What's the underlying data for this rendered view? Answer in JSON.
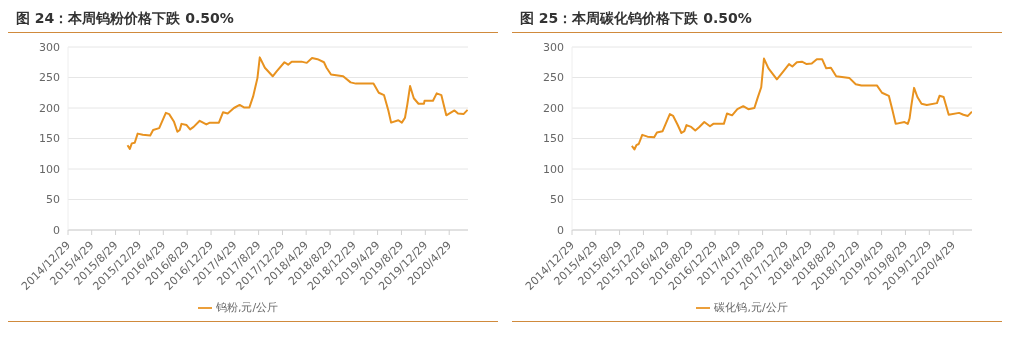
{
  "chart_data": [
    {
      "type": "line",
      "title": "图 24：本周钨粉价格下跌 0.50%",
      "legend": "bottom",
      "grid": "y",
      "marker": "none",
      "line_style": "solid",
      "x": [
        "2015-10-29",
        "2015-11-10",
        "2015-11-20",
        "2015-12-05",
        "2015-12-20",
        "2016-01-15",
        "2016-02-22",
        "2016-03-08",
        "2016-04-08",
        "2016-05-12",
        "2016-05-29",
        "2016-06-22",
        "2016-07-10",
        "2016-07-22",
        "2016-07-31",
        "2016-08-26",
        "2016-09-13",
        "2016-10-01",
        "2016-11-01",
        "2016-12-05",
        "2016-12-23",
        "2017-02-07",
        "2017-02-28",
        "2017-03-24",
        "2017-04-25",
        "2017-05-24",
        "2017-06-15",
        "2017-07-13",
        "2017-08-01",
        "2017-08-23",
        "2017-09-04",
        "2017-09-30",
        "2017-11-09",
        "2017-11-29",
        "2018-01-08",
        "2018-01-27",
        "2018-02-14",
        "2018-04-05",
        "2018-05-02",
        "2018-05-29",
        "2018-06-26",
        "2018-07-29",
        "2018-08-11",
        "2018-09-03",
        "2018-11-04",
        "2018-12-12",
        "2019-01-08",
        "2019-04-08",
        "2019-05-05",
        "2019-06-01",
        "2019-06-23",
        "2019-07-07",
        "2019-08-13",
        "2019-08-31",
        "2019-09-16",
        "2019-09-28",
        "2019-10-12",
        "2019-10-31",
        "2019-11-24",
        "2019-12-22",
        "2019-12-25",
        "2020-02-06",
        "2020-02-25",
        "2020-03-20",
        "2020-04-14",
        "2020-05-26",
        "2020-06-13",
        "2020-07-11",
        "2020-08-01"
      ],
      "series": [
        {
          "name": "钨粉,元/公斤",
          "color": "#e8921f",
          "values": [
            139,
            133,
            142,
            143,
            158,
            156,
            155,
            164,
            167,
            192,
            190,
            178,
            161,
            164,
            174,
            172,
            165,
            169,
            179,
            173,
            176,
            176,
            193,
            191,
            200,
            205,
            201,
            201,
            219,
            249,
            283,
            266,
            252,
            260,
            275,
            271,
            276,
            276,
            274,
            282,
            280,
            275,
            266,
            255,
            252,
            242,
            240,
            240,
            225,
            221,
            196,
            176,
            180,
            176,
            184,
            206,
            236,
            216,
            207,
            207,
            212,
            212,
            224,
            221,
            188,
            196,
            191,
            190,
            197
          ]
        }
      ],
      "xlim": [
        "2014-12-29",
        "2020-08-03"
      ],
      "xticks": [
        {
          "value": "2014-12-29",
          "label": "2014/12/29"
        },
        {
          "value": "2015-04-29",
          "label": "2015/4/29"
        },
        {
          "value": "2015-08-29",
          "label": "2015/8/29"
        },
        {
          "value": "2015-12-29",
          "label": "2015/12/29"
        },
        {
          "value": "2016-04-29",
          "label": "2016/4/29"
        },
        {
          "value": "2016-08-29",
          "label": "2016/8/29"
        },
        {
          "value": "2016-12-29",
          "label": "2016/12/29"
        },
        {
          "value": "2017-04-29",
          "label": "2017/4/29"
        },
        {
          "value": "2017-08-29",
          "label": "2017/8/29"
        },
        {
          "value": "2017-12-29",
          "label": "2017/12/29"
        },
        {
          "value": "2018-04-29",
          "label": "2018/4/29"
        },
        {
          "value": "2018-08-29",
          "label": "2018/8/29"
        },
        {
          "value": "2018-12-29",
          "label": "2018/12/29"
        },
        {
          "value": "2019-04-29",
          "label": "2019/4/29"
        },
        {
          "value": "2019-08-29",
          "label": "2019/8/29"
        },
        {
          "value": "2019-12-29",
          "label": "2019/12/29"
        },
        {
          "value": "2020-04-29",
          "label": "2020/4/29"
        }
      ],
      "ylim": [
        0,
        300
      ],
      "yticks": [
        0,
        50,
        100,
        150,
        200,
        250,
        300
      ]
    },
    {
      "type": "line",
      "title": "图 25：本周碳化钨价格下跌 0.50%",
      "legend": "bottom",
      "grid": "y",
      "marker": "none",
      "line_style": "solid",
      "x": [
        "2015-10-31",
        "2015-11-13",
        "2015-11-23",
        "2015-12-05",
        "2015-12-23",
        "2016-01-19",
        "2016-02-22",
        "2016-03-07",
        "2016-04-05",
        "2016-05-12",
        "2016-05-29",
        "2016-06-20",
        "2016-07-10",
        "2016-07-25",
        "2016-08-05",
        "2016-08-29",
        "2016-09-19",
        "2016-10-07",
        "2016-11-04",
        "2016-12-03",
        "2016-12-20",
        "2017-02-12",
        "2017-02-28",
        "2017-03-26",
        "2017-04-22",
        "2017-05-22",
        "2017-06-17",
        "2017-07-18",
        "2017-08-04",
        "2017-08-22",
        "2017-09-05",
        "2017-09-28",
        "2017-11-10",
        "2017-12-10",
        "2018-01-11",
        "2018-01-28",
        "2018-02-20",
        "2018-03-18",
        "2018-04-11",
        "2018-05-07",
        "2018-06-02",
        "2018-06-29",
        "2018-07-20",
        "2018-08-13",
        "2018-09-09",
        "2018-11-16",
        "2018-12-18",
        "2019-01-16",
        "2019-04-05",
        "2019-05-01",
        "2019-06-05",
        "2019-06-23",
        "2019-07-10",
        "2019-08-24",
        "2019-09-10",
        "2019-09-19",
        "2019-09-28",
        "2019-10-12",
        "2019-10-29",
        "2019-11-19",
        "2019-12-16",
        "2020-02-06",
        "2020-02-19",
        "2020-03-11",
        "2020-04-06",
        "2020-05-29",
        "2020-06-20",
        "2020-07-13",
        "2020-08-03"
      ],
      "series": [
        {
          "name": "碳化钨,元/公斤",
          "color": "#e8921f",
          "values": [
            138,
            132,
            139,
            141,
            156,
            153,
            152,
            160,
            162,
            190,
            187,
            173,
            159,
            162,
            172,
            169,
            163,
            168,
            177,
            170,
            174,
            174,
            191,
            188,
            198,
            203,
            198,
            200,
            217,
            234,
            281,
            265,
            247,
            259,
            272,
            268,
            275,
            276,
            272,
            273,
            280,
            280,
            265,
            266,
            252,
            249,
            239,
            237,
            237,
            225,
            220,
            197,
            174,
            177,
            174,
            183,
            204,
            233,
            218,
            207,
            205,
            208,
            220,
            218,
            189,
            192,
            189,
            187,
            194
          ]
        }
      ],
      "xlim": [
        "2014-12-29",
        "2020-08-03"
      ],
      "xticks": [
        {
          "value": "2014-12-29",
          "label": "2014/12/29"
        },
        {
          "value": "2015-04-29",
          "label": "2015/4/29"
        },
        {
          "value": "2015-08-29",
          "label": "2015/8/29"
        },
        {
          "value": "2015-12-29",
          "label": "2015/12/29"
        },
        {
          "value": "2016-04-29",
          "label": "2016/4/29"
        },
        {
          "value": "2016-08-29",
          "label": "2016/8/29"
        },
        {
          "value": "2016-12-29",
          "label": "2016/12/29"
        },
        {
          "value": "2017-04-29",
          "label": "2017/4/29"
        },
        {
          "value": "2017-08-29",
          "label": "2017/8/29"
        },
        {
          "value": "2017-12-29",
          "label": "2017/12/29"
        },
        {
          "value": "2018-04-29",
          "label": "2018/4/29"
        },
        {
          "value": "2018-08-29",
          "label": "2018/8/29"
        },
        {
          "value": "2018-12-29",
          "label": "2018/12/29"
        },
        {
          "value": "2019-04-29",
          "label": "2019/4/29"
        },
        {
          "value": "2019-08-29",
          "label": "2019/8/29"
        },
        {
          "value": "2019-12-29",
          "label": "2019/12/29"
        },
        {
          "value": "2020-04-29",
          "label": "2020/4/29"
        }
      ],
      "ylim": [
        0,
        300
      ],
      "yticks": [
        0,
        50,
        100,
        150,
        200,
        250,
        300
      ]
    }
  ]
}
